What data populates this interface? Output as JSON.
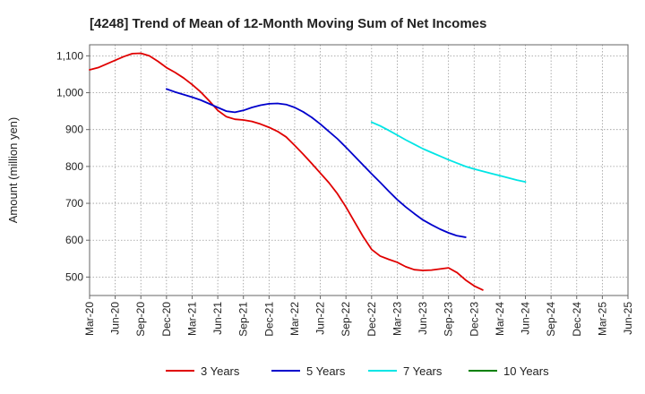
{
  "chart_data": {
    "type": "line",
    "title": "[4248]  Trend of Mean of 12-Month Moving Sum of Net Incomes",
    "xlabel": "",
    "ylabel": "Amount (million yen)",
    "ylim": [
      450,
      1130
    ],
    "yticks": [
      500,
      600,
      700,
      800,
      900,
      1000,
      1100
    ],
    "ytick_labels": [
      "500",
      "600",
      "700",
      "800",
      "900",
      "1,000",
      "1,100"
    ],
    "xtick_labels": [
      "Mar-20",
      "Jun-20",
      "Sep-20",
      "Dec-20",
      "Mar-21",
      "Jun-21",
      "Sep-21",
      "Dec-21",
      "Mar-22",
      "Jun-22",
      "Sep-22",
      "Dec-22",
      "Mar-23",
      "Jun-23",
      "Sep-23",
      "Dec-23",
      "Mar-24",
      "Jun-24",
      "Sep-24",
      "Dec-24",
      "Mar-25",
      "Jun-25"
    ],
    "grid": true,
    "legend_position": "bottom",
    "series": [
      {
        "name": "3 Years",
        "color": "#e00000",
        "start_index": 0,
        "values": [
          1062,
          1068,
          1078,
          1088,
          1098,
          1106,
          1107,
          1100,
          1085,
          1068,
          1055,
          1040,
          1022,
          1002,
          978,
          952,
          935,
          928,
          926,
          922,
          915,
          906,
          895,
          880,
          857,
          833,
          808,
          782,
          756,
          726,
          690,
          650,
          610,
          575,
          557,
          548,
          540,
          528,
          520,
          518,
          519,
          522,
          525,
          512,
          492,
          476,
          465
        ]
      },
      {
        "name": "5 Years",
        "color": "#0000cc",
        "start_index": 9,
        "values": [
          1010,
          1002,
          995,
          988,
          980,
          970,
          960,
          950,
          947,
          952,
          960,
          966,
          970,
          971,
          968,
          960,
          948,
          933,
          915,
          895,
          875,
          852,
          828,
          804,
          780,
          757,
          733,
          710,
          690,
          672,
          655,
          642,
          630,
          620,
          612,
          608
        ]
      },
      {
        "name": "7 Years",
        "color": "#00e5e5",
        "start_index": 33,
        "values": [
          920,
          910,
          898,
          885,
          872,
          860,
          848,
          838,
          828,
          818,
          809,
          800,
          793,
          787,
          781,
          775,
          769,
          763,
          758
        ]
      },
      {
        "name": "10 Years",
        "color": "#008000",
        "start_index": 0,
        "values": []
      }
    ]
  }
}
